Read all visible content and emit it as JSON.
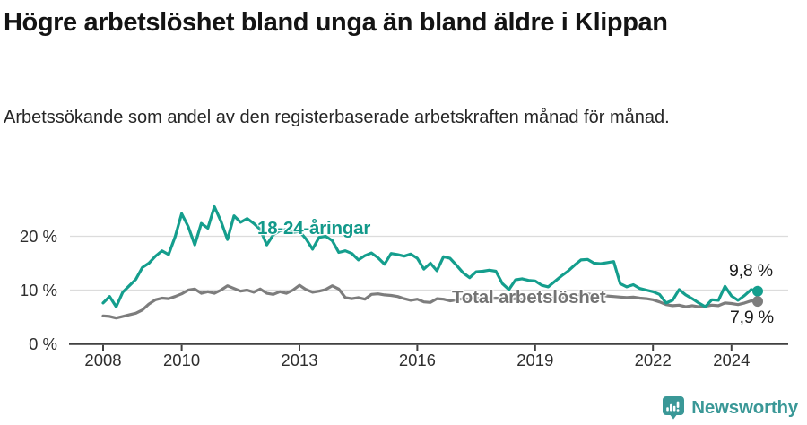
{
  "header": {
    "title": "Högre arbetslöshet bland unga än bland äldre i Klippan",
    "subtitle": "Arbetssökande som andel av den registerbaserade arbetskraften månad för månad."
  },
  "chart_data": {
    "type": "line",
    "title": "Högre arbetslöshet bland unga än bland äldre i Klippan",
    "xlabel": "",
    "ylabel": "Arbetssökande som andel av den registerbaserade arbetskraften",
    "x_start": 2008,
    "x_step_years": 0.1666667,
    "x_end_approx": 2024.67,
    "ylim": [
      0,
      27
    ],
    "grid": "horizontal",
    "x_ticks": [
      {
        "value": 2008,
        "label": "2008"
      },
      {
        "value": 2010,
        "label": "2010"
      },
      {
        "value": 2013,
        "label": "2013"
      },
      {
        "value": 2016,
        "label": "2016"
      },
      {
        "value": 2019,
        "label": "2019"
      },
      {
        "value": 2022,
        "label": "2022"
      },
      {
        "value": 2024,
        "label": "2024"
      }
    ],
    "y_ticks": [
      {
        "value": 0,
        "label": "0 %"
      },
      {
        "value": 10,
        "label": "10 %"
      },
      {
        "value": 20,
        "label": "20 %"
      }
    ],
    "series": [
      {
        "name": "18-24-åringar",
        "color": "#149e8d",
        "end_label": "9,8 %",
        "end_value": 9.8,
        "values": [
          7.6,
          8.8,
          6.9,
          9.6,
          10.8,
          12.0,
          14.2,
          15.0,
          16.3,
          17.3,
          16.6,
          19.9,
          24.2,
          21.8,
          18.4,
          22.4,
          21.5,
          25.5,
          22.8,
          19.4,
          23.8,
          22.6,
          23.3,
          22.4,
          21.3,
          18.4,
          20.3,
          21.0,
          21.3,
          20.7,
          20.9,
          19.5,
          17.6,
          19.8,
          20.0,
          19.2,
          17.0,
          17.3,
          16.8,
          15.6,
          16.4,
          16.9,
          16.0,
          14.8,
          16.8,
          16.6,
          16.3,
          16.7,
          15.9,
          13.9,
          15.0,
          13.6,
          16.2,
          15.9,
          14.6,
          13.2,
          12.3,
          13.4,
          13.5,
          13.7,
          13.5,
          11.2,
          10.1,
          11.9,
          12.1,
          11.8,
          11.7,
          10.9,
          10.6,
          11.6,
          12.6,
          13.5,
          14.6,
          15.6,
          15.7,
          15.0,
          14.9,
          15.1,
          15.3,
          11.2,
          10.6,
          11.0,
          10.3,
          10.0,
          9.7,
          9.2,
          7.6,
          8.1,
          10.1,
          9.1,
          8.4,
          7.6,
          6.9,
          8.2,
          8.1,
          10.7,
          8.9,
          8.1,
          9.0,
          10.1,
          9.8
        ]
      },
      {
        "name": "Total arbetslöshet",
        "color": "#7d7d7d",
        "end_label": "7,9 %",
        "end_value": 7.9,
        "values": [
          5.2,
          5.1,
          4.8,
          5.1,
          5.4,
          5.7,
          6.3,
          7.4,
          8.2,
          8.5,
          8.4,
          8.8,
          9.3,
          10.0,
          10.2,
          9.4,
          9.7,
          9.4,
          10.0,
          10.8,
          10.3,
          9.8,
          10.0,
          9.6,
          10.2,
          9.4,
          9.2,
          9.7,
          9.4,
          10.0,
          10.9,
          10.1,
          9.6,
          9.8,
          10.1,
          10.8,
          10.2,
          8.6,
          8.4,
          8.6,
          8.3,
          9.2,
          9.3,
          9.1,
          9.0,
          8.8,
          8.4,
          8.1,
          8.3,
          7.8,
          7.7,
          8.4,
          8.3,
          8.0,
          8.2,
          8.4,
          8.3,
          8.5,
          8.4,
          8.4,
          8.5,
          8.4,
          8.2,
          8.4,
          8.3,
          8.2,
          8.3,
          8.4,
          8.5,
          8.6,
          8.5,
          8.7,
          8.8,
          9.2,
          9.3,
          9.1,
          9.0,
          8.9,
          8.8,
          8.7,
          8.6,
          8.7,
          8.5,
          8.4,
          8.2,
          7.8,
          7.3,
          7.1,
          7.2,
          6.9,
          7.1,
          6.9,
          7.0,
          7.2,
          7.1,
          7.6,
          7.5,
          7.3,
          7.6,
          8.0,
          7.9
        ]
      }
    ],
    "colors": {
      "grid": "#dcdcdc",
      "axis": "#404040",
      "tick_text": "#2e2e2e"
    }
  },
  "footer": {
    "brand": "Newsworthy",
    "logo_icon": "newsworthy-bubble-chart-icon",
    "brand_color": "#3a9897"
  }
}
